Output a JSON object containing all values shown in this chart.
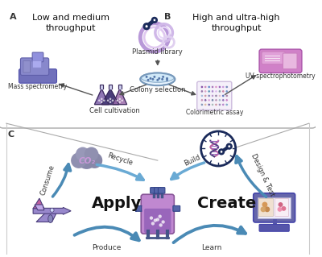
{
  "bg_color": "#ffffff",
  "section_A_title": "Low and medium\nthroughput",
  "section_B_title": "High and ultra-high\nthroughput",
  "label_A": "A",
  "label_B": "B",
  "label_C": "C",
  "plasmid_label": "Plasmid library",
  "colony_label": "Colony selection",
  "mass_label": "Mass spectrometry",
  "cell_label": "Cell cultivation",
  "uv_label": "UV spectrophotometry",
  "colorimetric_label": "Colorimetric assay",
  "apply_label": "Apply",
  "create_label": "Create",
  "produce_label": "Produce",
  "learn_label": "Learn",
  "consume_label": "Consume",
  "recycle_label": "Recycle",
  "build_label": "Build",
  "design_label": "Design & Test",
  "co2_label": "CO₂",
  "purple_dark": "#4a3d7a",
  "purple_mid": "#7b5ea7",
  "purple_light": "#c9a8d4",
  "blue_arrow": "#4a8ab5",
  "blue_mid": "#6aaad4",
  "pink_purple": "#c060a0",
  "mauve": "#a06888",
  "navy": "#1a2a5a",
  "lavender": "#9888cc",
  "ms_blue": "#7070bb",
  "uv_pink": "#cc77cc",
  "cloud_dark": "#5a5a7a",
  "cloud_purple": "#c898d8"
}
